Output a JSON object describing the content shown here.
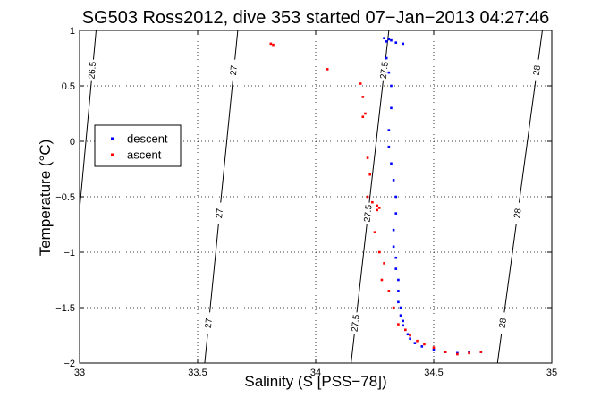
{
  "chart_data": {
    "type": "scatter",
    "title": "SG503 Ross2012, dive 353 started 07−Jan−2013 04:27:46",
    "xlabel": "Salinity (S [PSS−78])",
    "ylabel": "Temperature (°C)",
    "xlim": [
      33,
      35
    ],
    "ylim": [
      -2,
      1
    ],
    "xticks": [
      33,
      33.5,
      34,
      34.5,
      35
    ],
    "xtick_labels": [
      "33",
      "33.5",
      "34",
      "34.5",
      "35"
    ],
    "yticks": [
      -2,
      -1.5,
      -1,
      -0.5,
      0,
      0.5,
      1
    ],
    "ytick_labels": [
      "−2",
      "−1.5",
      "−1",
      "−0.5",
      "0",
      "0.5",
      "1"
    ],
    "grid": true,
    "legend": "left",
    "series": [
      {
        "name": "descent",
        "color": "#0000ff",
        "x": [
          34.29,
          34.3,
          34.31,
          34.32,
          34.34,
          34.37,
          34.3,
          34.31,
          34.32,
          34.32,
          34.31,
          34.31,
          34.32,
          34.33,
          34.34,
          34.34,
          34.33,
          34.33,
          34.34,
          34.34,
          34.35,
          34.35,
          34.35,
          34.36,
          34.36,
          34.37,
          34.37,
          34.38,
          34.39,
          34.4,
          34.42,
          34.45,
          34.5,
          34.55,
          34.6,
          34.65,
          34.7
        ],
        "y": [
          0.93,
          0.9,
          0.92,
          0.91,
          0.89,
          0.88,
          0.75,
          0.62,
          0.5,
          0.3,
          0.1,
          -0.05,
          -0.2,
          -0.35,
          -0.5,
          -0.65,
          -0.8,
          -0.95,
          -1.05,
          -1.15,
          -1.25,
          -1.35,
          -1.45,
          -1.5,
          -1.57,
          -1.62,
          -1.66,
          -1.7,
          -1.74,
          -1.78,
          -1.82,
          -1.85,
          -1.88,
          -1.9,
          -1.91,
          -1.9,
          -1.9
        ]
      },
      {
        "name": "ascent",
        "color": "#ff0000",
        "x": [
          33.81,
          33.82,
          34.05,
          34.19,
          34.2,
          34.21,
          34.2,
          34.22,
          34.23,
          34.22,
          34.24,
          34.26,
          34.27,
          34.26,
          34.25,
          34.27,
          34.29,
          34.28,
          34.31,
          34.33,
          34.35,
          34.38,
          34.4,
          34.43,
          34.46,
          34.5,
          34.55,
          34.6,
          34.65,
          34.7
        ],
        "y": [
          0.88,
          0.87,
          0.65,
          0.52,
          0.4,
          0.25,
          0.22,
          -0.15,
          -0.3,
          -0.5,
          -0.55,
          -0.58,
          -0.6,
          -0.62,
          -0.82,
          -1.0,
          -1.1,
          -1.25,
          -1.35,
          -1.5,
          -1.65,
          -1.7,
          -1.75,
          -1.8,
          -1.83,
          -1.86,
          -1.9,
          -1.92,
          -1.91,
          -1.9
        ]
      }
    ],
    "isopycnals": [
      {
        "label": "26.5",
        "x0": 32.94,
        "x1": 33.07
      },
      {
        "label": "27",
        "x0": 33.53,
        "x1": 33.67
      },
      {
        "label": "27.5",
        "x0": 34.15,
        "x1": 34.31
      },
      {
        "label": "28",
        "x0": 34.77,
        "x1": 34.96
      }
    ]
  }
}
